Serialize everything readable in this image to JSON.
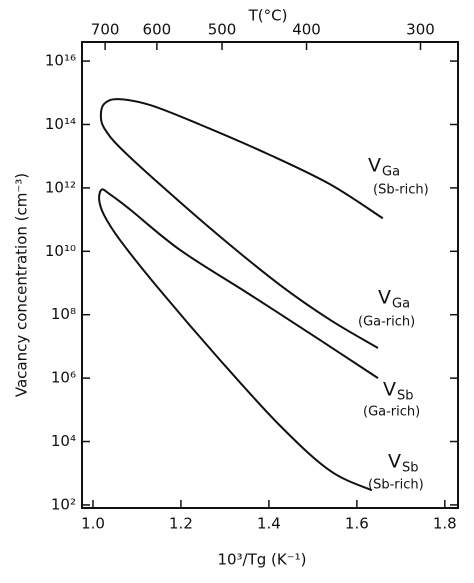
{
  "chart_data": {
    "type": "line",
    "title": "T(°C)",
    "x_label": "10³/Tg (K⁻¹)",
    "y_label": "Vacancy concentration (cm⁻³)",
    "log_y": true,
    "xlim": [
      0.975,
      1.83
    ],
    "ylim": [
      80,
      4e+16
    ],
    "xticks": [
      {
        "value": 1.0,
        "label": "1.0"
      },
      1.2,
      1.4,
      1.6,
      1.8
    ],
    "x2ticks": [
      700,
      600,
      500,
      400,
      300
    ],
    "yticks": [
      {
        "value": 100,
        "label": "10²"
      },
      {
        "value": 10000,
        "label": "10⁴"
      },
      {
        "value": 1000000,
        "label": "10⁶"
      },
      {
        "value": 100000000,
        "label": "10⁸"
      },
      {
        "value": 10000000000,
        "label": "10¹⁰"
      },
      {
        "value": 1000000000000,
        "label": "10¹²"
      },
      {
        "value": 100000000000000,
        "label": "10¹⁴"
      },
      {
        "value": 10000000000000000,
        "label": "10¹⁶"
      }
    ],
    "series": [
      {
        "color": "#111111",
        "x": [
          1.659,
          1.539,
          1.402,
          1.243,
          1.13,
          1.057,
          1.025,
          1.018,
          1.027,
          1.061,
          1.152,
          1.289,
          1.425,
          1.539,
          1.648
        ],
        "values": [
          110000000000.0,
          1300000000000.0,
          11000000000000.0,
          100000000000000.0,
          410000000000000.0,
          630000000000000.0,
          440000000000000.0,
          170000000000000.0,
          71000000000000.0,
          19000000000000.0,
          1300000000000.0,
          29000000000.0,
          870000000.0,
          69000000.0,
          8900000.0
        ]
      },
      {
        "color": "#111111",
        "x": [
          1.648,
          1.516,
          1.357,
          1.198,
          1.084,
          1.039,
          1.02,
          1.014,
          1.025,
          1.061,
          1.152,
          1.289,
          1.425,
          1.539,
          1.634
        ],
        "values": [
          1000000.0,
          16000000.0,
          430000000.0,
          11000000000.0,
          210000000000.0,
          620000000000.0,
          890000000000.0,
          430000000000.0,
          140000000000.0,
          23000000000.0,
          600000000.0,
          3700000.0,
          32000.0,
          1200.0,
          290.0
        ]
      }
    ],
    "annotations": [
      {
        "text": "V",
        "sub": "Ga",
        "note": "(Sb-rich)"
      },
      {
        "text": "V",
        "sub": "Ga",
        "note": "(Ga-rich)"
      },
      {
        "text": "V",
        "sub": "Sb",
        "note": "(Ga-rich)"
      },
      {
        "text": "V",
        "sub": "Sb",
        "note": "(Sb-rich)"
      }
    ]
  }
}
